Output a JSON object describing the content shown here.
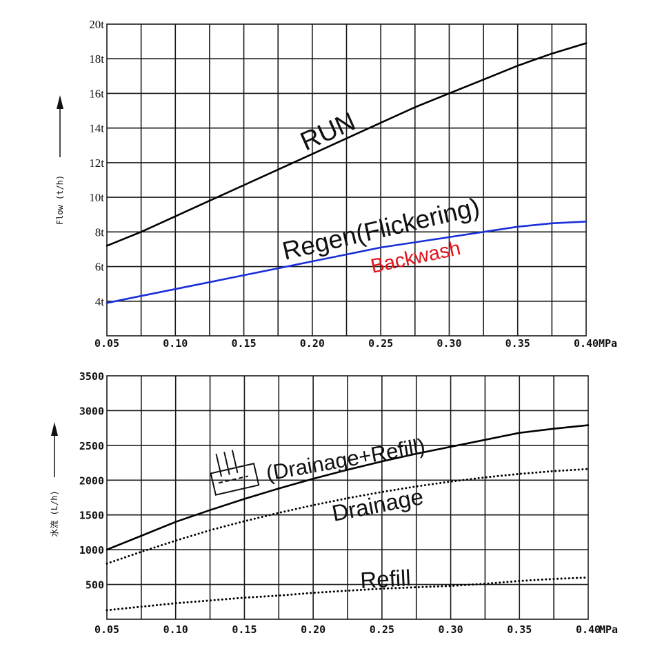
{
  "colors": {
    "grid": "#1a1a1a",
    "text": "#111111",
    "run": "#000000",
    "regen": "#1a2fd8",
    "backwash": "#e0141b"
  },
  "chart_data": [
    {
      "type": "line",
      "x": [
        0.05,
        0.075,
        0.1,
        0.125,
        0.15,
        0.175,
        0.2,
        0.225,
        0.25,
        0.275,
        0.3,
        0.325,
        0.35,
        0.375,
        0.4
      ],
      "xticks": [
        "0.05",
        "0.10",
        "0.15",
        "0.20",
        "0.25",
        "0.30",
        "0.35",
        "0.40"
      ],
      "xunit": "MPa",
      "xlim": [
        0.05,
        0.4
      ],
      "ylim": [
        2,
        20
      ],
      "yticks": [
        "4t",
        "6t",
        "8t",
        "10t",
        "12t",
        "14t",
        "16t",
        "18t",
        "20t"
      ],
      "ylabel": "Flow (t/h)",
      "grid": true,
      "series": [
        {
          "name": "RUN",
          "color": "#000000",
          "style": "solid",
          "values": [
            7.2,
            8.0,
            8.9,
            9.8,
            10.7,
            11.6,
            12.5,
            13.4,
            14.3,
            15.2,
            16.0,
            16.8,
            17.6,
            18.3,
            18.9
          ]
        },
        {
          "name": "Regen(Flickering)",
          "color": "#1a2fd8",
          "style": "solid",
          "values": [
            3.9,
            4.3,
            4.7,
            5.1,
            5.5,
            5.9,
            6.3,
            6.7,
            7.1,
            7.4,
            7.7,
            8.0,
            8.3,
            8.5,
            8.6
          ]
        }
      ],
      "annotations": [
        {
          "text": "RUN",
          "color": "#111111"
        },
        {
          "text": "Regen(Flickering)",
          "color": "#111111"
        },
        {
          "text": "Backwash",
          "color": "#e0141b"
        }
      ]
    },
    {
      "type": "line",
      "x": [
        0.05,
        0.075,
        0.1,
        0.125,
        0.15,
        0.175,
        0.2,
        0.225,
        0.25,
        0.275,
        0.3,
        0.325,
        0.35,
        0.375,
        0.4
      ],
      "xticks": [
        "0.05",
        "0.10",
        "0.15",
        "0.20",
        "0.25",
        "0.30",
        "0.35",
        "0.40"
      ],
      "xunit": "MPa",
      "xlim": [
        0.05,
        0.4
      ],
      "ylim": [
        0,
        3500
      ],
      "yticks": [
        "500",
        "1000",
        "1500",
        "2000",
        "2500",
        "3000",
        "3500"
      ],
      "ylabel": "水流 (L/h)",
      "grid": true,
      "series": [
        {
          "name": "(Drainage+Refill)",
          "color": "#000000",
          "style": "solid",
          "values": [
            1000,
            1200,
            1400,
            1570,
            1730,
            1880,
            2020,
            2150,
            2270,
            2380,
            2480,
            2580,
            2680,
            2740,
            2790
          ]
        },
        {
          "name": "Drainage",
          "color": "#000000",
          "style": "dotted",
          "values": [
            800,
            970,
            1130,
            1280,
            1410,
            1530,
            1640,
            1740,
            1830,
            1910,
            1980,
            2040,
            2090,
            2130,
            2160
          ]
        },
        {
          "name": "Refill",
          "color": "#000000",
          "style": "dotted",
          "values": [
            130,
            180,
            230,
            270,
            310,
            340,
            380,
            410,
            440,
            460,
            480,
            510,
            550,
            580,
            600
          ]
        }
      ],
      "annotations": [
        {
          "text": "(Drainage+Refill)",
          "color": "#111111"
        },
        {
          "text": "Drainage",
          "color": "#111111"
        },
        {
          "text": "Refill",
          "color": "#111111"
        }
      ]
    }
  ]
}
